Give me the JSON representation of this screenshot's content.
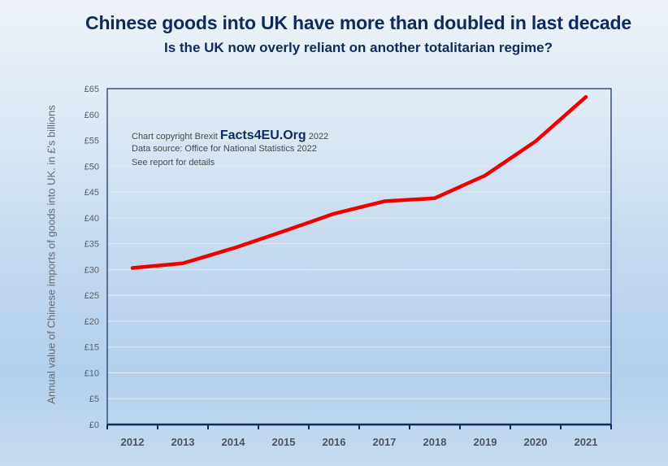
{
  "title": "Chinese goods into UK have more than doubled in last decade",
  "subtitle": "Is the UK now overly reliant on another totalitarian regime?",
  "annotations": {
    "copyright_prefix": "Chart copyright Brexit",
    "brand": "Facts4EU.Org",
    "copyright_year": "2022",
    "source": "Data source: Office for National Statistics 2022",
    "details": "See report for details"
  },
  "colors": {
    "line": "#ee0000",
    "axis": "#0f2a5c",
    "title": "#0f2a5c",
    "grid": "#e4e9ef"
  },
  "chart_data": {
    "type": "line",
    "title": "Chinese goods into UK have more than doubled in last decade",
    "subtitle": "Is the UK now overly reliant on another totalitarian regime?",
    "xlabel": "",
    "ylabel": "Annual value of Chinese imports of goods into UK. in £'s billions",
    "categories": [
      "2012",
      "2013",
      "2014",
      "2015",
      "2016",
      "2017",
      "2018",
      "2019",
      "2020",
      "2021"
    ],
    "series": [
      {
        "name": "Chinese imports of goods into UK (£bn)",
        "values": [
          30.3,
          31.2,
          34.1,
          37.4,
          40.8,
          43.2,
          43.8,
          48.2,
          54.8,
          63.4
        ]
      }
    ],
    "ylim": [
      0,
      65
    ],
    "yticks": [
      0,
      5,
      10,
      15,
      20,
      25,
      30,
      35,
      40,
      45,
      50,
      55,
      60,
      65
    ],
    "ytick_labels": [
      "£0",
      "£5",
      "£10",
      "£15",
      "£20",
      "£25",
      "£30",
      "£35",
      "£40",
      "£45",
      "£50",
      "£55",
      "£60",
      "£65"
    ],
    "grid": true,
    "legend": "none"
  }
}
